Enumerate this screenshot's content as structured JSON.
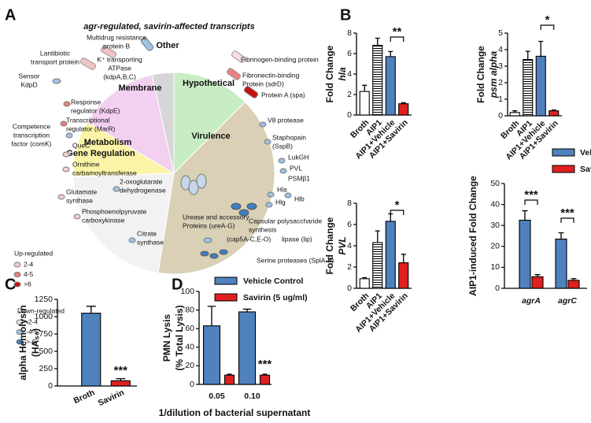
{
  "panels": [
    "A",
    "B",
    "C",
    "D"
  ],
  "chart_data": [
    {
      "type": "pie",
      "title": "agr-regulated, savirin-affected transcripts",
      "categories": [
        "Hypothetical",
        "Virulence",
        "Metabolism",
        "Gene Regulation",
        "Membrane",
        "Other"
      ],
      "values": [
        12.5,
        40,
        22,
        9,
        13,
        3.5
      ],
      "colors": [
        "#c8ecc4",
        "#d9d0b6",
        "#f2f2f2",
        "#fbf4a6",
        "#f3d0f0",
        "#d6d6d6"
      ],
      "annotations": [
        [
          "Multidrug resistance",
          "protein B"
        ],
        [
          "Lantibiotic",
          "transport protein"
        ],
        [
          "K⁺ transporting",
          "ATPase",
          "(kdpA,B,C)"
        ],
        [
          "Sensor",
          "KdpD"
        ],
        [
          "Response",
          "regulator (KdpE)"
        ],
        [
          "Transcriptional",
          "regulator (MarR)"
        ],
        [
          "Competence",
          "transcription",
          "factor (comK)"
        ],
        [
          "QueC"
        ],
        [
          "Ornithine",
          "carbamoyltransferase"
        ],
        [
          "2-oxoglutarate",
          "dehydrogenase"
        ],
        [
          "Glutamate",
          "synthase"
        ],
        [
          "Phosphoenolpyruvate",
          "carboxykinase"
        ],
        [
          "Citrate",
          "synthase"
        ],
        [
          "Fibrinogen-binding protein"
        ],
        [
          "Fibronectin-binding",
          "Protein (sdrD)"
        ],
        [
          "Protein A (spa)"
        ],
        [
          "V8 protease"
        ],
        [
          "Staphopain",
          "(SspB)"
        ],
        [
          "LukGH"
        ],
        [
          "PVL"
        ],
        [
          "PSMβ1"
        ],
        [
          "Hla"
        ],
        [
          "Hlb"
        ],
        [
          "Hlg"
        ],
        [
          "Capsular polysaccharide",
          "synthesis"
        ],
        [
          "(cap5A-C,E-O)"
        ],
        [
          "lipase (lip)"
        ],
        [
          "Serine proteases (SplA-F)"
        ],
        [
          "Urease and accessory",
          "Proteins (ureA-G)"
        ]
      ],
      "legend": [
        {
          "title": "Up-regulated",
          "items": [
            "2-4",
            "4-5",
            ">6"
          ],
          "colors": [
            "#f2cfcf",
            "#e88080",
            "#cc1111"
          ]
        },
        {
          "title": "Down-regulated",
          "items": [
            "-2-4",
            "-4-5",
            ">-6"
          ],
          "colors": [
            "#d7e6f4",
            "#9cc3e6",
            "#3f7fc0"
          ]
        }
      ]
    },
    {
      "type": "bar",
      "ylabel": [
        "Fold Change",
        "hla"
      ],
      "categories": [
        "Broth",
        "AIP1",
        "AIP1+Vehicle",
        "AIP1+Savirin"
      ],
      "values": [
        2.3,
        6.8,
        5.7,
        1.1
      ],
      "errors": [
        0.6,
        0.7,
        0.5,
        0.1
      ],
      "colors": [
        "#ffffff",
        "#ffffff",
        "#4f81bd",
        "#e02020"
      ],
      "hatched": [
        false,
        true,
        false,
        false
      ],
      "ylim": [
        0,
        8
      ],
      "yticks": [
        0,
        2,
        4,
        6,
        8
      ],
      "significance": [
        "**"
      ]
    },
    {
      "type": "bar",
      "ylabel": [
        "Fold Change",
        "psm alpha"
      ],
      "categories": [
        "Broth",
        "AIP1",
        "AIP1+Vehicle",
        "AIP1+Savirin"
      ],
      "values": [
        0.2,
        3.4,
        3.6,
        0.3
      ],
      "errors": [
        0.1,
        0.5,
        0.9,
        0.05
      ],
      "colors": [
        "#ffffff",
        "#ffffff",
        "#4f81bd",
        "#e02020"
      ],
      "hatched": [
        false,
        true,
        false,
        false
      ],
      "ylim": [
        0,
        5
      ],
      "yticks": [
        0,
        1,
        2,
        3,
        4,
        5
      ],
      "significance": [
        "*"
      ]
    },
    {
      "type": "bar",
      "ylabel": [
        "Fold Change",
        "PVL"
      ],
      "categories": [
        "Broth",
        "AIP1",
        "AIP1+Vehicle",
        "AIP1+Savirin"
      ],
      "values": [
        0.9,
        4.3,
        6.3,
        2.4
      ],
      "errors": [
        0.1,
        1.1,
        0.7,
        0.8
      ],
      "colors": [
        "#ffffff",
        "#ffffff",
        "#4f81bd",
        "#e02020"
      ],
      "hatched": [
        false,
        true,
        false,
        false
      ],
      "ylim": [
        0,
        8
      ],
      "yticks": [
        0,
        2,
        4,
        6,
        8
      ],
      "significance": [
        "*"
      ]
    },
    {
      "type": "bar",
      "ylabel": [
        "AIP1-induced Fold Change"
      ],
      "categories": [
        "agrA",
        "agrC"
      ],
      "series": [
        {
          "name": "Vehicle",
          "color": "#4f81bd",
          "values": [
            32.5,
            23.5
          ],
          "errors": [
            4.5,
            3
          ]
        },
        {
          "name": "Savirin",
          "color": "#e02020",
          "values": [
            5.5,
            3.8
          ],
          "errors": [
            1,
            0.8
          ]
        }
      ],
      "ylim": [
        0,
        50
      ],
      "yticks": [
        0,
        10,
        20,
        30,
        40,
        50
      ],
      "significance": [
        "***",
        "***"
      ]
    },
    {
      "type": "bar",
      "ylabel": [
        "alpha Hemolysin",
        "(HA₅₀)"
      ],
      "categories": [
        "Broth",
        "Savirin"
      ],
      "values": [
        1050,
        75
      ],
      "errors": [
        100,
        30
      ],
      "colors": [
        "#4f81bd",
        "#e02020"
      ],
      "ylim": [
        0,
        1250
      ],
      "yticks": [
        0,
        250,
        500,
        750,
        1000,
        1250
      ],
      "significance": [
        "***"
      ]
    },
    {
      "type": "bar",
      "ylabel": [
        "PMN Lysis",
        "(% Total Lysis)"
      ],
      "xlabel": "1/dilution of bacterial supernatant",
      "categories": [
        "0.05",
        "0.10"
      ],
      "series": [
        {
          "name": "Vehicle Control",
          "color": "#4f81bd",
          "values": [
            63,
            78
          ],
          "errors": [
            21,
            3
          ]
        },
        {
          "name": "Savirin (5 ug/ml)",
          "color": "#e02020",
          "values": [
            10,
            10
          ],
          "errors": [
            1,
            1
          ]
        }
      ],
      "ylim": [
        0,
        100
      ],
      "yticks": [
        0,
        20,
        40,
        60,
        80,
        100
      ],
      "significance": [
        "***"
      ]
    }
  ]
}
